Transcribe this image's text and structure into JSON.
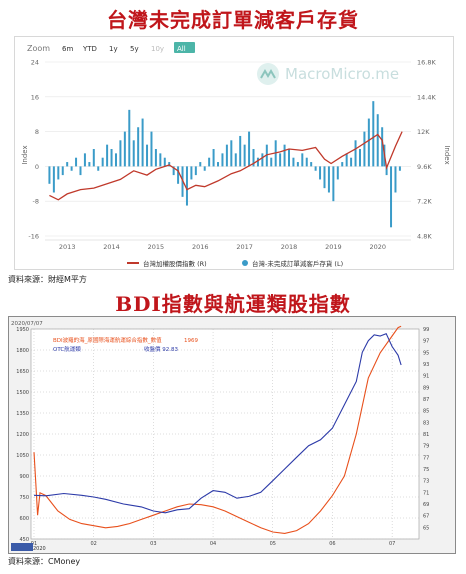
{
  "header": {
    "title1": "台灣未完成訂單減客戶存貨",
    "title2": "BDI指數與航運類股指數",
    "source1": "資料來源：財經M平方",
    "source2": "資料來源：CMoney"
  },
  "chart1_ui": {
    "zoom_label": "Zoom",
    "zoom_buttons": [
      "6m",
      "YTD",
      "1y",
      "5y",
      "10y",
      "All"
    ],
    "watermark": "MacroMicro.me"
  },
  "chart2_ui": {
    "legend_orange_label": "BDI波羅的海_原國際海運航運綜合指數_數值",
    "legend_orange_value": "1969",
    "legend_blue_label": "OTC航運類",
    "legend_blue_value": "收盤價 92.83",
    "corner_label": "2020/07/07",
    "year_label": "2020"
  },
  "chart_data": [
    {
      "type": "line",
      "ylabel_left": "Index",
      "ylabel_right": "Index",
      "x_ticks": [
        "2013",
        "2014",
        "2015",
        "2016",
        "2017",
        "2018",
        "2019",
        "2020"
      ],
      "y_left_ticks": [
        "24",
        "16",
        "8",
        "0",
        "-8",
        "-16"
      ],
      "y_right_ticks": [
        "16.8K",
        "14.4K",
        "12K",
        "9.6K",
        "7.2K",
        "4.8K"
      ],
      "ylim_left": [
        -16,
        24
      ],
      "ylim_right": [
        4800,
        16800
      ],
      "legend": [
        "台灣加權股價指數 (R)",
        "台灣-未完成訂單減客戶存貨 (L)"
      ],
      "series": [
        {
          "name": "台灣加權股價指數 (R)",
          "axis": "right",
          "color": "#c0392b",
          "points": [
            [
              2012.6,
              7600
            ],
            [
              2012.8,
              7300
            ],
            [
              2013.0,
              7700
            ],
            [
              2013.3,
              8000
            ],
            [
              2013.6,
              8100
            ],
            [
              2013.9,
              8400
            ],
            [
              2014.2,
              8700
            ],
            [
              2014.5,
              9300
            ],
            [
              2014.8,
              9000
            ],
            [
              2015.0,
              9400
            ],
            [
              2015.3,
              9700
            ],
            [
              2015.5,
              9300
            ],
            [
              2015.7,
              8000
            ],
            [
              2015.9,
              8300
            ],
            [
              2016.1,
              8200
            ],
            [
              2016.4,
              8600
            ],
            [
              2016.7,
              9100
            ],
            [
              2016.9,
              9300
            ],
            [
              2017.2,
              9800
            ],
            [
              2017.5,
              10400
            ],
            [
              2017.8,
              10600
            ],
            [
              2018.0,
              10800
            ],
            [
              2018.3,
              10700
            ],
            [
              2018.6,
              10900
            ],
            [
              2018.8,
              10100
            ],
            [
              2018.95,
              9800
            ],
            [
              2019.2,
              10300
            ],
            [
              2019.5,
              10800
            ],
            [
              2019.8,
              11400
            ],
            [
              2020.0,
              11800
            ],
            [
              2020.1,
              11400
            ],
            [
              2020.2,
              9500
            ],
            [
              2020.4,
              11000
            ],
            [
              2020.55,
              12000
            ]
          ]
        },
        {
          "name": "台灣-未完成訂單減客戶存貨 (L)",
          "axis": "left",
          "color": "#3a9bc8",
          "bars": [
            [
              2012.6,
              -4
            ],
            [
              2012.7,
              -6
            ],
            [
              2012.8,
              -3
            ],
            [
              2012.9,
              -2
            ],
            [
              2013.0,
              1
            ],
            [
              2013.1,
              -1
            ],
            [
              2013.2,
              2
            ],
            [
              2013.3,
              -2
            ],
            [
              2013.4,
              3
            ],
            [
              2013.5,
              1
            ],
            [
              2013.6,
              4
            ],
            [
              2013.7,
              -1
            ],
            [
              2013.8,
              2
            ],
            [
              2013.9,
              5
            ],
            [
              2014.0,
              4
            ],
            [
              2014.1,
              3
            ],
            [
              2014.2,
              6
            ],
            [
              2014.3,
              8
            ],
            [
              2014.4,
              13
            ],
            [
              2014.5,
              6
            ],
            [
              2014.6,
              9
            ],
            [
              2014.7,
              11
            ],
            [
              2014.8,
              5
            ],
            [
              2014.9,
              8
            ],
            [
              2015.0,
              4
            ],
            [
              2015.1,
              3
            ],
            [
              2015.2,
              2
            ],
            [
              2015.3,
              1
            ],
            [
              2015.4,
              -2
            ],
            [
              2015.5,
              -4
            ],
            [
              2015.6,
              -7
            ],
            [
              2015.7,
              -9
            ],
            [
              2015.8,
              -3
            ],
            [
              2015.9,
              -2
            ],
            [
              2016.0,
              1
            ],
            [
              2016.1,
              -1
            ],
            [
              2016.2,
              2
            ],
            [
              2016.3,
              4
            ],
            [
              2016.4,
              1
            ],
            [
              2016.5,
              3
            ],
            [
              2016.6,
              5
            ],
            [
              2016.7,
              6
            ],
            [
              2016.8,
              3
            ],
            [
              2016.9,
              7
            ],
            [
              2017.0,
              5
            ],
            [
              2017.1,
              8
            ],
            [
              2017.2,
              4
            ],
            [
              2017.3,
              2
            ],
            [
              2017.4,
              3
            ],
            [
              2017.5,
              5
            ],
            [
              2017.6,
              2
            ],
            [
              2017.7,
              6
            ],
            [
              2017.8,
              3
            ],
            [
              2017.9,
              5
            ],
            [
              2018.0,
              4
            ],
            [
              2018.1,
              2
            ],
            [
              2018.2,
              1
            ],
            [
              2018.3,
              3
            ],
            [
              2018.4,
              2
            ],
            [
              2018.5,
              1
            ],
            [
              2018.6,
              -1
            ],
            [
              2018.7,
              -3
            ],
            [
              2018.8,
              -5
            ],
            [
              2018.9,
              -6
            ],
            [
              2019.0,
              -8
            ],
            [
              2019.1,
              -3
            ],
            [
              2019.2,
              1
            ],
            [
              2019.3,
              3
            ],
            [
              2019.4,
              2
            ],
            [
              2019.5,
              6
            ],
            [
              2019.6,
              4
            ],
            [
              2019.7,
              8
            ],
            [
              2019.8,
              11
            ],
            [
              2019.9,
              15
            ],
            [
              2020.0,
              12
            ],
            [
              2020.1,
              9
            ],
            [
              2020.15,
              5
            ],
            [
              2020.2,
              -2
            ],
            [
              2020.3,
              -14
            ],
            [
              2020.4,
              -6
            ],
            [
              2020.5,
              -1
            ]
          ]
        }
      ]
    },
    {
      "type": "line",
      "x_ticks": [
        "01",
        "02",
        "03",
        "04",
        "05",
        "06",
        "07"
      ],
      "y_left_ticks": [
        "1950",
        "1800",
        "1650",
        "1500",
        "1350",
        "1200",
        "1050",
        "900",
        "750",
        "600",
        "450"
      ],
      "y_right_ticks": [
        "99",
        "97",
        "95",
        "93",
        "91",
        "89",
        "87",
        "85",
        "83",
        "81",
        "79",
        "77",
        "75",
        "73",
        "71",
        "69",
        "67",
        "65"
      ],
      "ylim_left": [
        450,
        1950
      ],
      "ylim_right": [
        63,
        99
      ],
      "series": [
        {
          "name": "BDI波羅的海_原國際海運航運綜合指數_數值",
          "axis": "left",
          "color": "#e8501c",
          "points": [
            [
              1.0,
              1070
            ],
            [
              1.03,
              850
            ],
            [
              1.06,
              620
            ],
            [
              1.1,
              780
            ],
            [
              1.2,
              760
            ],
            [
              1.4,
              650
            ],
            [
              1.6,
              590
            ],
            [
              1.8,
              560
            ],
            [
              2.0,
              545
            ],
            [
              2.2,
              530
            ],
            [
              2.4,
              540
            ],
            [
              2.6,
              560
            ],
            [
              2.8,
              590
            ],
            [
              3.0,
              620
            ],
            [
              3.2,
              650
            ],
            [
              3.4,
              680
            ],
            [
              3.6,
              700
            ],
            [
              3.8,
              695
            ],
            [
              4.0,
              680
            ],
            [
              4.2,
              650
            ],
            [
              4.4,
              610
            ],
            [
              4.6,
              570
            ],
            [
              4.8,
              530
            ],
            [
              5.0,
              500
            ],
            [
              5.2,
              490
            ],
            [
              5.4,
              510
            ],
            [
              5.6,
              560
            ],
            [
              5.8,
              650
            ],
            [
              6.0,
              760
            ],
            [
              6.2,
              900
            ],
            [
              6.4,
              1200
            ],
            [
              6.6,
              1600
            ],
            [
              6.8,
              1780
            ],
            [
              7.0,
              1900
            ],
            [
              7.1,
              1960
            ],
            [
              7.15,
              1969
            ]
          ]
        },
        {
          "name": "OTC航運類",
          "axis": "right",
          "color": "#2c3aa8",
          "points": [
            [
              1.0,
              70.5
            ],
            [
              1.2,
              70.4
            ],
            [
              1.5,
              70.8
            ],
            [
              1.8,
              70.5
            ],
            [
              2.0,
              70.2
            ],
            [
              2.2,
              69.8
            ],
            [
              2.5,
              69.0
            ],
            [
              2.8,
              68.5
            ],
            [
              3.0,
              67.8
            ],
            [
              3.2,
              67.5
            ],
            [
              3.4,
              68.0
            ],
            [
              3.6,
              68.2
            ],
            [
              3.8,
              70.0
            ],
            [
              4.0,
              71.3
            ],
            [
              4.2,
              71.0
            ],
            [
              4.4,
              70.0
            ],
            [
              4.6,
              70.3
            ],
            [
              4.8,
              71.0
            ],
            [
              5.0,
              73.0
            ],
            [
              5.2,
              75.0
            ],
            [
              5.4,
              77.0
            ],
            [
              5.6,
              79.0
            ],
            [
              5.8,
              80.0
            ],
            [
              6.0,
              82.0
            ],
            [
              6.2,
              86.0
            ],
            [
              6.4,
              90.0
            ],
            [
              6.5,
              95.0
            ],
            [
              6.6,
              97.0
            ],
            [
              6.7,
              98.0
            ],
            [
              6.8,
              97.8
            ],
            [
              6.9,
              98.2
            ],
            [
              7.0,
              96.0
            ],
            [
              7.1,
              94.5
            ],
            [
              7.15,
              92.83
            ]
          ]
        }
      ]
    }
  ]
}
